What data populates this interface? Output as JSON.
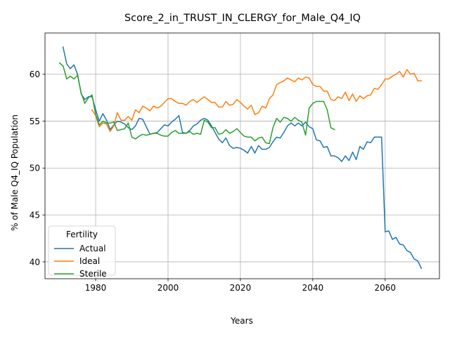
{
  "chart_data": {
    "type": "line",
    "title": "Score_2_in_TRUST_IN_CLERGY_for_Male_Q4_IQ",
    "xlabel": "Years",
    "ylabel": "% of Male Q4_IQ Population",
    "xlim": [
      1966,
      2075
    ],
    "ylim": [
      38.2,
      64.4
    ],
    "xticks": [
      1980,
      2000,
      2020,
      2040,
      2060
    ],
    "yticks": [
      40,
      45,
      50,
      55,
      60
    ],
    "grid": true,
    "legend": {
      "title": "Fertility",
      "placement": "lower-left"
    },
    "series": [
      {
        "name": "Actual",
        "color": "#1f77b4",
        "x": [
          1971,
          1972,
          1973,
          1974,
          1975,
          1976,
          1977,
          1978,
          1979,
          1980,
          1981,
          1982,
          1983,
          1984,
          1985,
          1986,
          1987,
          1988,
          1989,
          1990,
          1991,
          1992,
          1993,
          1994,
          1995,
          1996,
          1997,
          1998,
          1999,
          2000,
          2001,
          2002,
          2003,
          2004,
          2005,
          2006,
          2007,
          2008,
          2009,
          2010,
          2011,
          2012,
          2013,
          2014,
          2015,
          2016,
          2017,
          2018,
          2019,
          2020,
          2021,
          2022,
          2023,
          2024,
          2025,
          2026,
          2027,
          2028,
          2029,
          2030,
          2031,
          2032,
          2033,
          2034,
          2035,
          2036,
          2037,
          2038,
          2039,
          2040,
          2041,
          2042,
          2043,
          2044,
          2045,
          2046,
          2047,
          2048,
          2049,
          2050,
          2051,
          2052,
          2053,
          2054,
          2055,
          2056,
          2057,
          2058,
          2059,
          2060,
          2061,
          2062,
          2063,
          2064,
          2065,
          2066,
          2067,
          2068,
          2069,
          2070
        ],
        "y": [
          62.9,
          61.1,
          60.6,
          61.0,
          60.0,
          57.9,
          57.3,
          57.6,
          57.6,
          56.2,
          55.0,
          55.8,
          55.1,
          54.1,
          54.6,
          55.0,
          54.9,
          54.7,
          54.3,
          54.1,
          54.5,
          55.3,
          55.2,
          54.4,
          53.6,
          53.7,
          53.8,
          54.2,
          54.6,
          54.5,
          54.9,
          55.2,
          55.6,
          53.8,
          53.7,
          54.0,
          54.5,
          54.7,
          55.1,
          55.3,
          55.1,
          54.5,
          53.8,
          53.1,
          52.7,
          53.2,
          52.4,
          52.1,
          52.2,
          52.1,
          51.9,
          51.6,
          52.3,
          51.6,
          52.4,
          52.0,
          52.0,
          52.2,
          52.8,
          53.3,
          53.2,
          53.8,
          54.5,
          54.8,
          54.5,
          54.8,
          54.5,
          54.9,
          54.4,
          54.2,
          53.0,
          52.9,
          52.2,
          52.3,
          51.3,
          51.3,
          51.1,
          50.7,
          51.3,
          50.8,
          51.7,
          50.9,
          52.3,
          52.0,
          52.8,
          52.7,
          53.3,
          53.3,
          53.3,
          43.2,
          43.3,
          42.4,
          42.6,
          41.9,
          41.8,
          41.2,
          41.0,
          40.3,
          40.1,
          39.3
        ]
      },
      {
        "name": "Ideal",
        "color": "#ff7f0e",
        "x": [
          1979,
          1980,
          1981,
          1982,
          1983,
          1984,
          1985,
          1986,
          1987,
          1988,
          1989,
          1990,
          1991,
          1992,
          1993,
          1994,
          1995,
          1996,
          1997,
          1998,
          1999,
          2000,
          2001,
          2002,
          2003,
          2004,
          2005,
          2006,
          2007,
          2008,
          2009,
          2010,
          2011,
          2012,
          2013,
          2014,
          2015,
          2016,
          2017,
          2018,
          2019,
          2020,
          2021,
          2022,
          2023,
          2024,
          2025,
          2026,
          2027,
          2028,
          2029,
          2030,
          2031,
          2032,
          2033,
          2034,
          2035,
          2036,
          2037,
          2038,
          2039,
          2040,
          2041,
          2042,
          2043,
          2044,
          2045,
          2046,
          2047,
          2048,
          2049,
          2050,
          2051,
          2052,
          2053,
          2054,
          2055,
          2056,
          2057,
          2058,
          2059,
          2060,
          2061,
          2062,
          2063,
          2064,
          2065,
          2066,
          2067,
          2068,
          2069,
          2070
        ],
        "y": [
          56.2,
          55.6,
          54.4,
          54.8,
          54.7,
          53.9,
          54.5,
          55.9,
          55.1,
          55.1,
          55.5,
          55.1,
          56.2,
          55.9,
          56.6,
          56.4,
          56.1,
          56.6,
          56.4,
          56.6,
          57.0,
          57.4,
          57.4,
          57.1,
          56.9,
          56.9,
          56.7,
          57.1,
          57.3,
          57.0,
          57.3,
          57.6,
          57.3,
          57.0,
          57.0,
          56.5,
          56.5,
          57.1,
          56.7,
          56.8,
          57.3,
          57.0,
          56.6,
          56.3,
          56.7,
          55.7,
          55.9,
          56.6,
          56.4,
          57.4,
          57.8,
          58.9,
          59.1,
          59.3,
          59.6,
          59.4,
          59.2,
          59.6,
          59.4,
          59.7,
          59.6,
          58.9,
          58.7,
          58.7,
          58.2,
          58.2,
          57.3,
          57.2,
          57.6,
          57.4,
          58.1,
          57.2,
          57.9,
          57.1,
          57.7,
          57.4,
          57.7,
          57.8,
          58.5,
          58.4,
          58.9,
          59.5,
          59.5,
          59.8,
          60.0,
          60.3,
          59.7,
          60.5,
          60.0,
          60.1,
          59.3,
          59.3
        ]
      },
      {
        "name": "Sterile",
        "color": "#2ca02c",
        "x": [
          1970,
          1971,
          1972,
          1973,
          1974,
          1975,
          1976,
          1977,
          1978,
          1979,
          1980,
          1981,
          1982,
          1983,
          1984,
          1985,
          1986,
          1987,
          1988,
          1989,
          1990,
          1991,
          1992,
          1993,
          1994,
          1995,
          1996,
          1997,
          1998,
          1999,
          2000,
          2001,
          2002,
          2003,
          2004,
          2005,
          2006,
          2007,
          2008,
          2009,
          2010,
          2011,
          2012,
          2013,
          2014,
          2015,
          2016,
          2017,
          2018,
          2019,
          2020,
          2021,
          2022,
          2023,
          2024,
          2025,
          2026,
          2027,
          2028,
          2029,
          2030,
          2031,
          2032,
          2033,
          2034,
          2035,
          2036,
          2037,
          2038,
          2039,
          2040,
          2041,
          2042,
          2043,
          2044,
          2045,
          2046
        ],
        "y": [
          61.2,
          60.9,
          59.5,
          59.8,
          59.5,
          59.9,
          58.0,
          56.9,
          57.5,
          57.8,
          55.7,
          54.6,
          55.0,
          54.8,
          54.8,
          54.9,
          54.0,
          54.1,
          54.2,
          54.8,
          53.3,
          53.1,
          53.4,
          53.6,
          53.5,
          53.6,
          53.7,
          53.7,
          53.5,
          53.4,
          53.4,
          53.8,
          54.0,
          53.7,
          53.7,
          53.7,
          53.9,
          53.6,
          53.7,
          53.6,
          55.1,
          54.9,
          54.3,
          54.3,
          53.6,
          53.7,
          54.1,
          53.7,
          53.9,
          54.2,
          53.8,
          53.4,
          53.3,
          53.3,
          52.9,
          53.2,
          53.3,
          52.7,
          52.6,
          54.3,
          55.3,
          54.9,
          55.4,
          55.3,
          55.0,
          55.4,
          55.1,
          54.9,
          53.5,
          56.4,
          56.9,
          57.1,
          57.1,
          57.1,
          56.2,
          54.3,
          54.1
        ]
      }
    ]
  }
}
